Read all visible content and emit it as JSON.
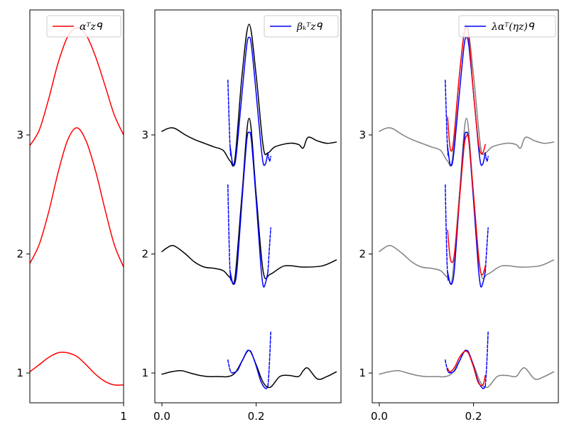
{
  "chart_data": [
    {
      "type": "line",
      "legend": {
        "label": "αᵀzᑫ",
        "placement": "upper-right"
      },
      "xlim": [
        0,
        1
      ],
      "ylim": [
        0.75,
        4.05
      ],
      "xticks": [
        {
          "value": 1,
          "label": "1"
        }
      ],
      "yticks": [
        {
          "value": 1,
          "label": "1"
        },
        {
          "value": 2,
          "label": "2"
        },
        {
          "value": 3,
          "label": "3"
        }
      ],
      "series": [
        {
          "color": "#ff0000",
          "x": [
            0,
            0.1,
            0.2,
            0.3,
            0.4,
            0.5,
            0.6,
            0.7,
            0.8,
            0.9,
            1.0
          ],
          "y": [
            1.01,
            1.07,
            1.13,
            1.17,
            1.17,
            1.14,
            1.07,
            0.99,
            0.93,
            0.9,
            0.9
          ]
        },
        {
          "color": "#ff0000",
          "x": [
            0,
            0.1,
            0.2,
            0.3,
            0.4,
            0.5,
            0.6,
            0.7,
            0.8,
            0.9,
            1.0
          ],
          "y": [
            1.92,
            2.08,
            2.35,
            2.68,
            2.95,
            3.06,
            2.95,
            2.7,
            2.38,
            2.08,
            1.89
          ]
        },
        {
          "color": "#ff0000",
          "x": [
            0,
            0.1,
            0.2,
            0.3,
            0.4,
            0.5,
            0.6,
            0.7,
            0.8,
            0.9,
            1.0
          ],
          "y": [
            2.91,
            3.04,
            3.3,
            3.6,
            3.82,
            3.9,
            3.84,
            3.66,
            3.42,
            3.17,
            3.0
          ]
        }
      ]
    },
    {
      "type": "line",
      "legend": {
        "label": "βₖᵀzᑫ",
        "placement": "upper-right"
      },
      "xlim": [
        -0.015,
        0.38
      ],
      "ylim": [
        0.75,
        4.05
      ],
      "xticks": [
        {
          "value": 0.0,
          "label": "0.0"
        },
        {
          "value": 0.2,
          "label": "0.2"
        }
      ],
      "yticks": [
        {
          "value": 1,
          "label": "1"
        },
        {
          "value": 2,
          "label": "2"
        },
        {
          "value": 3,
          "label": "3"
        }
      ],
      "series": [
        {
          "color": "#000000",
          "x": [
            0,
            0.02,
            0.04,
            0.06,
            0.08,
            0.1,
            0.12,
            0.14,
            0.155,
            0.17,
            0.185,
            0.2,
            0.215,
            0.23,
            0.25,
            0.27,
            0.29,
            0.3,
            0.31,
            0.33,
            0.35,
            0.37
          ],
          "y": [
            0.99,
            1.01,
            1.02,
            1.0,
            0.98,
            0.97,
            0.97,
            0.97,
            1.0,
            1.1,
            1.19,
            1.07,
            0.92,
            0.88,
            0.97,
            0.98,
            0.97,
            1.02,
            1.04,
            0.95,
            0.97,
            1.01
          ]
        },
        {
          "color": "#0000ff",
          "x": [
            0.15,
            0.16,
            0.17,
            0.18,
            0.185,
            0.19,
            0.2,
            0.21,
            0.22,
            0.225
          ],
          "y": [
            1.0,
            1.02,
            1.1,
            1.18,
            1.19,
            1.17,
            1.06,
            0.93,
            0.87,
            0.89
          ]
        },
        {
          "color": "#0000ff",
          "dashed": true,
          "x": [
            0.14,
            0.143,
            0.146,
            0.15
          ],
          "y": [
            1.11,
            1.05,
            1.01,
            1.0
          ]
        },
        {
          "color": "#0000ff",
          "dashed": true,
          "x": [
            0.225,
            0.227,
            0.229,
            0.231
          ],
          "y": [
            0.89,
            1.0,
            1.15,
            1.35
          ]
        },
        {
          "color": "#000000",
          "x": [
            0,
            0.01,
            0.02,
            0.03,
            0.05,
            0.07,
            0.09,
            0.11,
            0.13,
            0.145,
            0.155,
            0.17,
            0.185,
            0.2,
            0.215,
            0.23,
            0.26,
            0.3,
            0.34,
            0.37
          ],
          "y": [
            2.02,
            2.05,
            2.07,
            2.06,
            2.0,
            1.93,
            1.89,
            1.88,
            1.86,
            1.8,
            1.8,
            2.5,
            3.14,
            2.5,
            1.85,
            1.83,
            1.9,
            1.89,
            1.9,
            1.95
          ]
        },
        {
          "color": "#0000ff",
          "x": [
            0.145,
            0.15,
            0.155,
            0.16,
            0.17,
            0.18,
            0.185,
            0.19,
            0.2,
            0.21,
            0.215,
            0.22,
            0.225
          ],
          "y": [
            1.85,
            1.76,
            1.76,
            1.9,
            2.45,
            2.95,
            3.02,
            2.95,
            2.45,
            1.9,
            1.73,
            1.76,
            1.85
          ]
        },
        {
          "color": "#0000ff",
          "dashed": true,
          "x": [
            0.14,
            0.142,
            0.144,
            0.146
          ],
          "y": [
            2.58,
            2.2,
            1.9,
            1.78
          ]
        },
        {
          "color": "#0000ff",
          "dashed": true,
          "x": [
            0.225,
            0.227,
            0.229,
            0.231
          ],
          "y": [
            1.85,
            1.98,
            2.1,
            2.22
          ]
        },
        {
          "color": "#000000",
          "x": [
            0,
            0.01,
            0.02,
            0.03,
            0.05,
            0.07,
            0.09,
            0.11,
            0.13,
            0.145,
            0.155,
            0.17,
            0.185,
            0.2,
            0.215,
            0.225,
            0.24,
            0.27,
            0.29,
            0.3,
            0.31,
            0.33,
            0.35,
            0.37
          ],
          "y": [
            3.03,
            3.05,
            3.06,
            3.05,
            3.0,
            2.96,
            2.93,
            2.9,
            2.87,
            2.78,
            2.8,
            3.5,
            3.93,
            3.5,
            2.9,
            2.85,
            2.9,
            2.93,
            2.92,
            2.89,
            2.98,
            2.95,
            2.93,
            2.94
          ]
        },
        {
          "color": "#0000ff",
          "x": [
            0.145,
            0.15,
            0.155,
            0.16,
            0.17,
            0.18,
            0.185,
            0.19,
            0.2,
            0.21,
            0.215,
            0.22,
            0.225
          ],
          "y": [
            2.9,
            2.76,
            2.76,
            2.92,
            3.35,
            3.75,
            3.82,
            3.75,
            3.35,
            2.92,
            2.76,
            2.76,
            2.85
          ]
        },
        {
          "color": "#0000ff",
          "dashed": true,
          "x": [
            0.14,
            0.142,
            0.144,
            0.146
          ],
          "y": [
            3.46,
            3.2,
            2.95,
            2.82
          ]
        },
        {
          "color": "#0000ff",
          "dashed": true,
          "x": [
            0.225,
            0.227,
            0.229,
            0.231
          ],
          "y": [
            2.85,
            2.8,
            2.78,
            2.82
          ]
        }
      ]
    },
    {
      "type": "line",
      "legend": {
        "label": "λαᵀ(ηz)ᑫ",
        "placement": "upper-right"
      },
      "xlim": [
        -0.015,
        0.38
      ],
      "ylim": [
        0.75,
        4.05
      ],
      "xticks": [
        {
          "value": 0.0,
          "label": "0.0"
        },
        {
          "value": 0.2,
          "label": "0.2"
        }
      ],
      "yticks": [
        {
          "value": 1,
          "label": "1"
        },
        {
          "value": 2,
          "label": "2"
        },
        {
          "value": 3,
          "label": "3"
        }
      ],
      "series": [
        {
          "color": "#808080",
          "x": [
            0,
            0.02,
            0.04,
            0.06,
            0.08,
            0.1,
            0.12,
            0.14,
            0.155,
            0.17,
            0.185,
            0.2,
            0.215,
            0.23,
            0.25,
            0.27,
            0.29,
            0.3,
            0.31,
            0.33,
            0.35,
            0.37
          ],
          "y": [
            0.99,
            1.01,
            1.02,
            1.0,
            0.98,
            0.97,
            0.97,
            0.97,
            1.0,
            1.1,
            1.19,
            1.07,
            0.92,
            0.88,
            0.97,
            0.98,
            0.97,
            1.02,
            1.04,
            0.95,
            0.97,
            1.01
          ]
        },
        {
          "color": "#0000ff",
          "x": [
            0.15,
            0.16,
            0.17,
            0.18,
            0.185,
            0.19,
            0.2,
            0.21,
            0.22,
            0.225
          ],
          "y": [
            1.0,
            1.02,
            1.1,
            1.18,
            1.19,
            1.17,
            1.06,
            0.93,
            0.87,
            0.89
          ]
        },
        {
          "color": "#0000ff",
          "dashed": true,
          "x": [
            0.14,
            0.143,
            0.146,
            0.15
          ],
          "y": [
            1.11,
            1.05,
            1.01,
            1.0
          ]
        },
        {
          "color": "#0000ff",
          "dashed": true,
          "x": [
            0.225,
            0.227,
            0.229,
            0.231
          ],
          "y": [
            0.89,
            1.0,
            1.15,
            1.35
          ]
        },
        {
          "color": "#ff0000",
          "x": [
            0.145,
            0.15,
            0.16,
            0.17,
            0.18,
            0.185,
            0.19,
            0.2,
            0.21,
            0.22,
            0.225
          ],
          "y": [
            1.04,
            1.01,
            1.05,
            1.13,
            1.18,
            1.18,
            1.16,
            1.05,
            0.92,
            0.9,
            0.98
          ]
        },
        {
          "color": "#808080",
          "x": [
            0,
            0.01,
            0.02,
            0.03,
            0.05,
            0.07,
            0.09,
            0.11,
            0.13,
            0.145,
            0.155,
            0.17,
            0.185,
            0.2,
            0.215,
            0.23,
            0.26,
            0.3,
            0.34,
            0.37
          ],
          "y": [
            2.02,
            2.05,
            2.07,
            2.06,
            2.0,
            1.93,
            1.89,
            1.88,
            1.86,
            1.8,
            1.8,
            2.5,
            3.14,
            2.5,
            1.85,
            1.83,
            1.9,
            1.89,
            1.9,
            1.95
          ]
        },
        {
          "color": "#0000ff",
          "x": [
            0.145,
            0.15,
            0.155,
            0.16,
            0.17,
            0.18,
            0.185,
            0.19,
            0.2,
            0.21,
            0.215,
            0.22,
            0.225
          ],
          "y": [
            1.85,
            1.76,
            1.76,
            1.9,
            2.45,
            2.95,
            3.02,
            2.95,
            2.45,
            1.9,
            1.73,
            1.76,
            1.85
          ]
        },
        {
          "color": "#0000ff",
          "dashed": true,
          "x": [
            0.14,
            0.142,
            0.144,
            0.146
          ],
          "y": [
            2.58,
            2.2,
            1.9,
            1.78
          ]
        },
        {
          "color": "#0000ff",
          "dashed": true,
          "x": [
            0.225,
            0.227,
            0.229,
            0.231
          ],
          "y": [
            1.85,
            1.98,
            2.1,
            2.22
          ]
        },
        {
          "color": "#ff0000",
          "x": [
            0.145,
            0.15,
            0.155,
            0.16,
            0.17,
            0.18,
            0.185,
            0.19,
            0.2,
            0.21,
            0.215,
            0.22,
            0.225
          ],
          "y": [
            2.2,
            1.98,
            1.93,
            2.02,
            2.45,
            2.9,
            2.99,
            2.95,
            2.5,
            2.0,
            1.85,
            1.83,
            1.9
          ]
        },
        {
          "color": "#808080",
          "x": [
            0,
            0.01,
            0.02,
            0.03,
            0.05,
            0.07,
            0.09,
            0.11,
            0.13,
            0.145,
            0.155,
            0.17,
            0.185,
            0.2,
            0.215,
            0.225,
            0.24,
            0.27,
            0.29,
            0.3,
            0.31,
            0.33,
            0.35,
            0.37
          ],
          "y": [
            3.03,
            3.05,
            3.06,
            3.05,
            3.0,
            2.96,
            2.93,
            2.9,
            2.87,
            2.78,
            2.8,
            3.5,
            3.93,
            3.5,
            2.9,
            2.85,
            2.9,
            2.93,
            2.92,
            2.89,
            2.98,
            2.95,
            2.93,
            2.94
          ]
        },
        {
          "color": "#0000ff",
          "x": [
            0.145,
            0.15,
            0.155,
            0.16,
            0.17,
            0.18,
            0.185,
            0.19,
            0.2,
            0.21,
            0.215,
            0.22,
            0.225
          ],
          "y": [
            2.9,
            2.76,
            2.76,
            2.92,
            3.35,
            3.75,
            3.82,
            3.75,
            3.35,
            2.92,
            2.76,
            2.76,
            2.85
          ]
        },
        {
          "color": "#0000ff",
          "dashed": true,
          "x": [
            0.14,
            0.142,
            0.144,
            0.146
          ],
          "y": [
            3.46,
            3.2,
            2.95,
            2.82
          ]
        },
        {
          "color": "#0000ff",
          "dashed": true,
          "x": [
            0.225,
            0.227,
            0.229,
            0.231
          ],
          "y": [
            2.85,
            2.8,
            2.78,
            2.82
          ]
        },
        {
          "color": "#ff0000",
          "x": [
            0.145,
            0.15,
            0.155,
            0.16,
            0.17,
            0.18,
            0.185,
            0.19,
            0.2,
            0.21,
            0.215,
            0.22,
            0.225
          ],
          "y": [
            3.15,
            2.9,
            2.88,
            3.05,
            3.5,
            3.85,
            3.9,
            3.82,
            3.35,
            2.95,
            2.85,
            2.85,
            2.92
          ]
        }
      ]
    }
  ]
}
